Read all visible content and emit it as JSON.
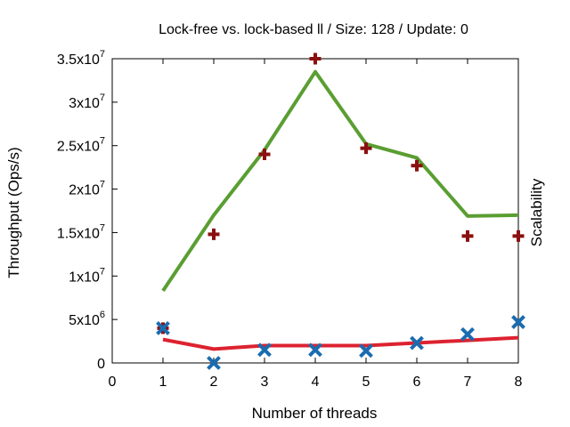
{
  "chart_data": {
    "type": "line",
    "title": "Lock-free vs. lock-based ll / Size: 128 / Update: 0",
    "xlabel": "Number of threads",
    "ylabel": "Throughput (Ops/s)",
    "y2label": "Scalability",
    "xlim": [
      0,
      8
    ],
    "ylim": [
      0,
      35000000
    ],
    "grid": false,
    "x_ticks": [
      0,
      1,
      2,
      3,
      4,
      5,
      6,
      7,
      8
    ],
    "y_ticks": [
      {
        "value": 0,
        "mantissa": "0",
        "exp": ""
      },
      {
        "value": 5000000,
        "mantissa": "5x10",
        "exp": "6"
      },
      {
        "value": 10000000,
        "mantissa": "1x10",
        "exp": "7"
      },
      {
        "value": 15000000,
        "mantissa": "1.5x10",
        "exp": "7"
      },
      {
        "value": 20000000,
        "mantissa": "2x10",
        "exp": "7"
      },
      {
        "value": 25000000,
        "mantissa": "2.5x10",
        "exp": "7"
      },
      {
        "value": 30000000,
        "mantissa": "3x10",
        "exp": "7"
      },
      {
        "value": 35000000,
        "mantissa": "3.5x10",
        "exp": "7"
      }
    ],
    "series": [
      {
        "kind": "line",
        "color": "#5a9e32",
        "x": [
          1,
          2,
          3,
          4,
          5,
          6,
          7,
          8
        ],
        "values": [
          8300000,
          17000000,
          24500000,
          33500000,
          25200000,
          23600000,
          16900000,
          17000000
        ]
      },
      {
        "kind": "line",
        "color": "#dd2230",
        "x": [
          1,
          2,
          3,
          4,
          5,
          6,
          7,
          8
        ],
        "values": [
          2700000,
          1600000,
          2000000,
          2000000,
          2000000,
          2300000,
          2600000,
          2900000
        ]
      },
      {
        "kind": "plus",
        "color": "#8b1010",
        "x": [
          1,
          2,
          3,
          4,
          5,
          6,
          7,
          8
        ],
        "values": [
          4000000,
          14800000,
          24000000,
          35000000,
          24700000,
          22700000,
          14600000,
          14600000
        ]
      },
      {
        "kind": "cross",
        "color": "#1a6cb0",
        "x": [
          1,
          2,
          3,
          4,
          5,
          6,
          7,
          8
        ],
        "values": [
          4000000,
          0,
          1500000,
          1500000,
          1400000,
          2300000,
          3300000,
          4700000
        ]
      }
    ]
  }
}
